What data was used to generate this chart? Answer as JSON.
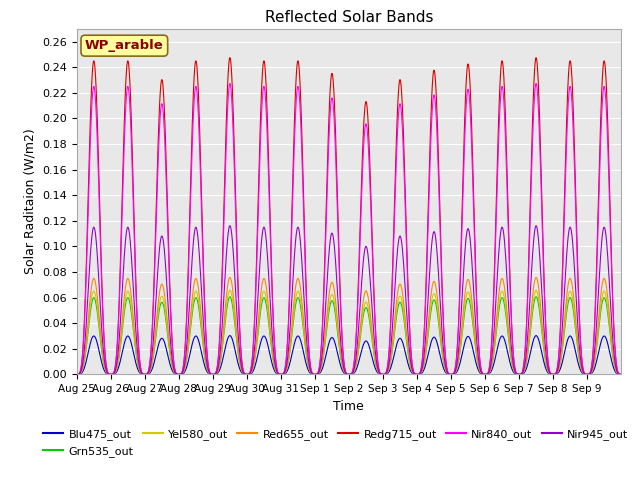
{
  "title": "Reflected Solar Bands",
  "xlabel": "Time",
  "ylabel": "Solar Raditaion (W/m2)",
  "annotation": "WP_arable",
  "ylim": [
    0,
    0.27
  ],
  "yticks": [
    0.0,
    0.02,
    0.04,
    0.06,
    0.08,
    0.1,
    0.12,
    0.14,
    0.16,
    0.18,
    0.2,
    0.22,
    0.24,
    0.26
  ],
  "xtick_labels": [
    "Aug 25",
    "Aug 26",
    "Aug 27",
    "Aug 28",
    "Aug 29",
    "Aug 30",
    "Aug 31",
    "Sep 1",
    "Sep 2",
    "Sep 3",
    "Sep 4",
    "Sep 5",
    "Sep 6",
    "Sep 7",
    "Sep 8",
    "Sep 9"
  ],
  "bands": {
    "Blu475_out": {
      "color": "#0000cc",
      "scale": 0.03
    },
    "Grn535_out": {
      "color": "#00cc00",
      "scale": 0.06
    },
    "Yel580_out": {
      "color": "#cccc00",
      "scale": 0.065
    },
    "Red655_out": {
      "color": "#ff8800",
      "scale": 0.075
    },
    "Redg715_out": {
      "color": "#dd0000",
      "scale": 0.245
    },
    "Nir840_out": {
      "color": "#ff00ff",
      "scale": 0.225
    },
    "Nir945_out": {
      "color": "#9900cc",
      "scale": 0.115
    }
  },
  "legend_order": [
    "Blu475_out",
    "Grn535_out",
    "Yel580_out",
    "Red655_out",
    "Redg715_out",
    "Nir840_out",
    "Nir945_out"
  ],
  "n_days": 16,
  "points_per_day": 96,
  "background_color": "#e8e8e8",
  "peak_variation": [
    1.0,
    1.0,
    0.94,
    1.0,
    1.01,
    1.0,
    1.0,
    0.96,
    0.87,
    0.94,
    0.97,
    0.99,
    1.0,
    1.01,
    1.0,
    1.0
  ]
}
